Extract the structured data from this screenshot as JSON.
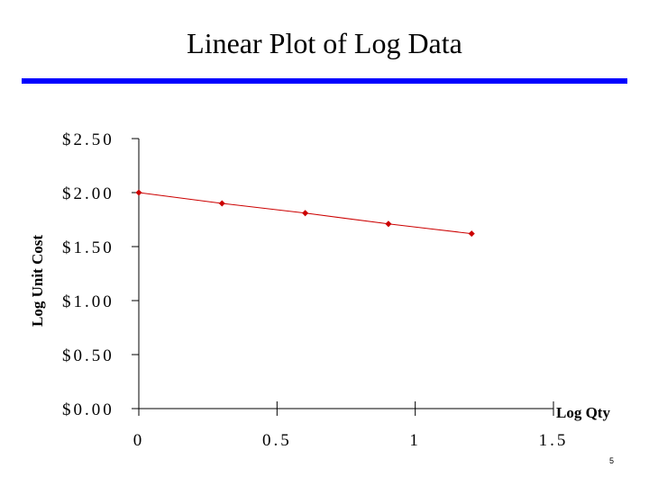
{
  "slide": {
    "title": "Linear Plot of Log Data",
    "page_number": "5",
    "accent_color": "#0000ff"
  },
  "chart_data": {
    "type": "line",
    "title": "",
    "xlabel": "Log Qty",
    "ylabel": "Log Unit Cost",
    "xlim": [
      0,
      1.5
    ],
    "ylim": [
      0,
      2.5
    ],
    "x_ticks": [
      0,
      0.5,
      1,
      1.5
    ],
    "x_tick_labels": [
      "0",
      "0.5",
      "1",
      "1.5"
    ],
    "y_ticks": [
      0,
      0.5,
      1,
      1.5,
      2,
      2.5
    ],
    "y_tick_labels": [
      "$0.00",
      "$0.50",
      "$1.00",
      "$1.50",
      "$2.00",
      "$2.50"
    ],
    "series": [
      {
        "color": "#cc0000",
        "x": [
          0,
          0.301,
          0.602,
          0.903,
          1.204
        ],
        "y": [
          2.0,
          1.9,
          1.81,
          1.71,
          1.62
        ]
      }
    ],
    "grid": false,
    "legend": "none"
  }
}
